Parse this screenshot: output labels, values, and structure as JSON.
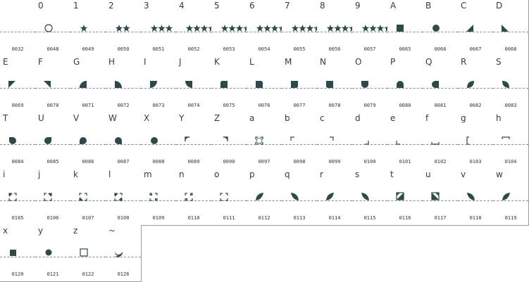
{
  "glyph_color": "#2d4a4a",
  "cells": [
    {
      "char": " ",
      "code": "0032",
      "glyph": "blank-glyph"
    },
    {
      "char": "0",
      "code": "0048",
      "glyph": "circle-outline-glyph"
    },
    {
      "char": "1",
      "code": "0049",
      "glyph": "star-1-glyph"
    },
    {
      "char": "2",
      "code": "0050",
      "glyph": "star-2-glyph"
    },
    {
      "char": "3",
      "code": "0051",
      "glyph": "star-3-glyph"
    },
    {
      "char": "4",
      "code": "0052",
      "glyph": "star-4-glyph"
    },
    {
      "char": "5",
      "code": "0053",
      "glyph": "star-5-glyph"
    },
    {
      "char": "6",
      "code": "0054",
      "glyph": "star-6-glyph"
    },
    {
      "char": "7",
      "code": "0055",
      "glyph": "star-7-glyph"
    },
    {
      "char": "8",
      "code": "0056",
      "glyph": "star-8-glyph"
    },
    {
      "char": "9",
      "code": "0057",
      "glyph": "star-9-glyph"
    },
    {
      "char": "A",
      "code": "0065",
      "glyph": "square-filled-glyph"
    },
    {
      "char": "B",
      "code": "0066",
      "glyph": "circle-filled-glyph"
    },
    {
      "char": "C",
      "code": "0067",
      "glyph": "triangle-br-glyph"
    },
    {
      "char": "D",
      "code": "0068",
      "glyph": "triangle-bl-glyph"
    },
    {
      "char": "E",
      "code": "0069",
      "glyph": "triangle-tl-glyph"
    },
    {
      "char": "F",
      "code": "0070",
      "glyph": "triangle-tr-glyph"
    },
    {
      "char": "G",
      "code": "0071",
      "glyph": "quarter-circle-br-glyph"
    },
    {
      "char": "H",
      "code": "0072",
      "glyph": "quarter-circle-bl-glyph"
    },
    {
      "char": "I",
      "code": "0073",
      "glyph": "quarter-circle-tr-glyph"
    },
    {
      "char": "J",
      "code": "0074",
      "glyph": "quarter-circle-tl-glyph"
    },
    {
      "char": "K",
      "code": "0075",
      "glyph": "rounded-tl-glyph"
    },
    {
      "char": "L",
      "code": "0076",
      "glyph": "rounded-tr-glyph"
    },
    {
      "char": "M",
      "code": "0077",
      "glyph": "rounded-br-glyph"
    },
    {
      "char": "N",
      "code": "0078",
      "glyph": "rounded-bl-glyph"
    },
    {
      "char": "O",
      "code": "0079",
      "glyph": "rounded-bottom-glyph"
    },
    {
      "char": "P",
      "code": "0080",
      "glyph": "rounded-top-glyph"
    },
    {
      "char": "Q",
      "code": "0081",
      "glyph": "rounded-left-glyph"
    },
    {
      "char": "R",
      "code": "0082",
      "glyph": "leaf-tr-glyph"
    },
    {
      "char": "S",
      "code": "0083",
      "glyph": "leaf-tl-glyph"
    },
    {
      "char": "T",
      "code": "0084",
      "glyph": "teardrop-tl-glyph"
    },
    {
      "char": "U",
      "code": "0085",
      "glyph": "teardrop-tr-glyph"
    },
    {
      "char": "V",
      "code": "0086",
      "glyph": "teardrop-bl-glyph"
    },
    {
      "char": "W",
      "code": "0087",
      "glyph": "teardrop-br-glyph"
    },
    {
      "char": "X",
      "code": "0088",
      "glyph": "circle-filled-glyph"
    },
    {
      "char": "Y",
      "code": "0089",
      "glyph": "corner-outline-tl-glyph"
    },
    {
      "char": "Z",
      "code": "0090",
      "glyph": "corner-outline-tr-glyph"
    },
    {
      "char": "a",
      "code": "0097",
      "glyph": "corner-marks-glyph"
    },
    {
      "char": "b",
      "code": "0098",
      "glyph": "corner-small-tl-glyph"
    },
    {
      "char": "c",
      "code": "0099",
      "glyph": "corner-small-tr-glyph"
    },
    {
      "char": "d",
      "code": "0100",
      "glyph": "corner-small-br-glyph"
    },
    {
      "char": "e",
      "code": "0101",
      "glyph": "corner-small-bl-glyph"
    },
    {
      "char": "f",
      "code": "0102",
      "glyph": "bracket-bottom-glyph"
    },
    {
      "char": "g",
      "code": "0103",
      "glyph": "bracket-left-glyph"
    },
    {
      "char": "h",
      "code": "0104",
      "glyph": "bracket-top-glyph"
    },
    {
      "char": "i",
      "code": "0105",
      "glyph": "bracket-tl-fill-glyph"
    },
    {
      "char": "j",
      "code": "0106",
      "glyph": "bracket-tr-fill-glyph"
    },
    {
      "char": "k",
      "code": "0107",
      "glyph": "bracket-bl-fill-glyph"
    },
    {
      "char": "l",
      "code": "0108",
      "glyph": "bracket-br-fill-glyph"
    },
    {
      "char": "m",
      "code": "0109",
      "glyph": "bracket-dots-glyph"
    },
    {
      "char": "n",
      "code": "0110",
      "glyph": "bracket-dots-2-glyph"
    },
    {
      "char": "o",
      "code": "0111",
      "glyph": "bracket-dots-3-glyph"
    },
    {
      "char": "p",
      "code": "0112",
      "glyph": "leaf-right-glyph"
    },
    {
      "char": "q",
      "code": "0113",
      "glyph": "leaf-left-glyph"
    },
    {
      "char": "r",
      "code": "0114",
      "glyph": "leaf-right-glyph"
    },
    {
      "char": "s",
      "code": "0115",
      "glyph": "leaf-left-glyph"
    },
    {
      "char": "t",
      "code": "0116",
      "glyph": "square-diagonal-tr-glyph"
    },
    {
      "char": "u",
      "code": "0117",
      "glyph": "square-diagonal-tl-glyph"
    },
    {
      "char": "v",
      "code": "0118",
      "glyph": "leaf-left-glyph"
    },
    {
      "char": "w",
      "code": "0119",
      "glyph": "leaf-right-glyph"
    },
    {
      "char": "x",
      "code": "0120",
      "glyph": "square-filled-small-glyph"
    },
    {
      "char": "y",
      "code": "0121",
      "glyph": "circle-filled-small-glyph"
    },
    {
      "char": "z",
      "code": "0122",
      "glyph": "square-outline-glyph"
    },
    {
      "char": "~",
      "code": "0126",
      "glyph": "crescent-glyph"
    }
  ]
}
